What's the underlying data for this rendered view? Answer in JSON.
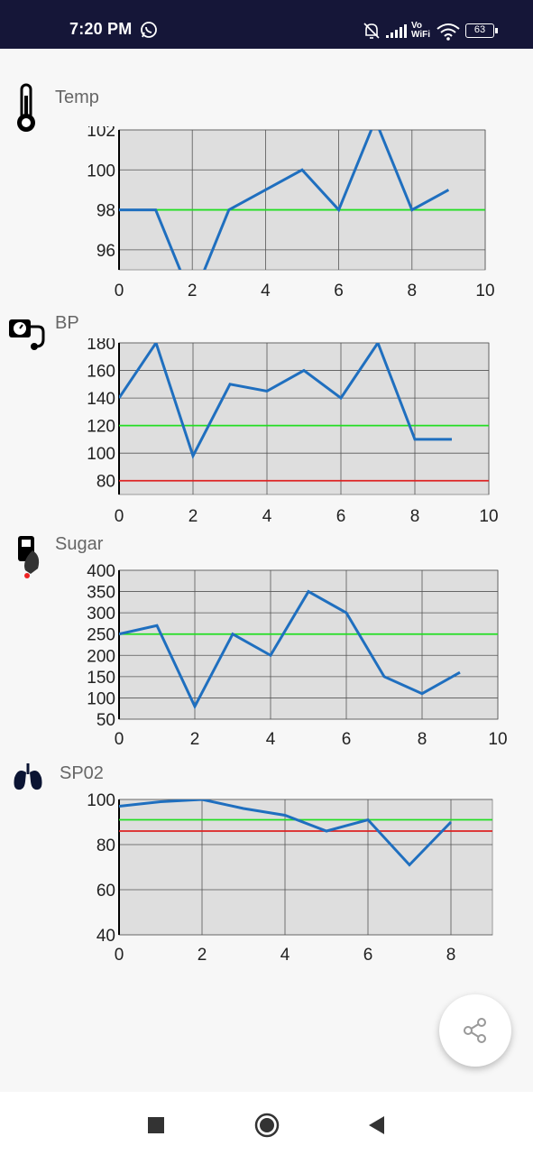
{
  "status_bar": {
    "time": "7:20 PM",
    "icons": [
      "whatsapp-icon",
      "mute-bell-icon",
      "signal-icon",
      "vowifi-icon",
      "wifi-icon",
      "battery-icon"
    ],
    "vowifi_text": "Vo\nWiFi",
    "battery": "63"
  },
  "sections": [
    {
      "label": "Temp",
      "icon": "thermometer-icon"
    },
    {
      "label": "BP",
      "icon": "blood-pressure-monitor-icon"
    },
    {
      "label": "Sugar",
      "icon": "glucose-meter-icon"
    },
    {
      "label": "SP02",
      "icon": "lungs-icon"
    }
  ],
  "chart_data": [
    {
      "type": "line",
      "xlim": [
        0,
        10
      ],
      "ylim": [
        95,
        102
      ],
      "x_ticks": [
        "0",
        "2",
        "4",
        "6",
        "8",
        "10"
      ],
      "y_ticks": [
        "96",
        "98",
        "100",
        "102"
      ],
      "series": [
        {
          "color": "#1f6fbf",
          "x": [
            0,
            1,
            2,
            3,
            4,
            5,
            6,
            7,
            8,
            9
          ],
          "y": [
            98,
            98,
            93.5,
            98,
            99,
            100,
            98,
            102.5,
            98,
            99
          ]
        }
      ],
      "reference_lines": [
        {
          "y": 98,
          "color": "#22dd22"
        }
      ],
      "grid": true
    },
    {
      "type": "line",
      "xlim": [
        0,
        10
      ],
      "ylim": [
        70,
        180
      ],
      "x_ticks": [
        "0",
        "2",
        "4",
        "6",
        "8",
        "10"
      ],
      "y_ticks": [
        "80",
        "100",
        "120",
        "140",
        "160",
        "180"
      ],
      "series": [
        {
          "color": "#1f6fbf",
          "x": [
            0,
            1,
            2,
            3,
            4,
            5,
            6,
            7,
            8,
            9
          ],
          "y": [
            140,
            180,
            98,
            150,
            145,
            160,
            140,
            180,
            110,
            110
          ]
        }
      ],
      "reference_lines": [
        {
          "y": 120,
          "color": "#22dd22"
        },
        {
          "y": 80,
          "color": "#dd2222"
        }
      ],
      "grid": true
    },
    {
      "type": "line",
      "xlim": [
        0,
        10
      ],
      "ylim": [
        50,
        400
      ],
      "x_ticks": [
        "0",
        "2",
        "4",
        "6",
        "8",
        "10"
      ],
      "y_ticks": [
        "50",
        "100",
        "150",
        "200",
        "250",
        "300",
        "350",
        "400"
      ],
      "series": [
        {
          "color": "#1f6fbf",
          "x": [
            0,
            1,
            2,
            3,
            4,
            5,
            6,
            7,
            8,
            9
          ],
          "y": [
            250,
            270,
            80,
            250,
            200,
            350,
            300,
            150,
            110,
            160
          ]
        }
      ],
      "reference_lines": [
        {
          "y": 250,
          "color": "#22dd22"
        }
      ],
      "grid": true
    },
    {
      "type": "line",
      "xlim": [
        0,
        9
      ],
      "ylim": [
        40,
        100
      ],
      "x_ticks": [
        "0",
        "2",
        "4",
        "6",
        "8"
      ],
      "y_ticks": [
        "40",
        "60",
        "80",
        "100"
      ],
      "series": [
        {
          "color": "#1f6fbf",
          "x": [
            0,
            1,
            2,
            3,
            4,
            5,
            6,
            7,
            8
          ],
          "y": [
            97,
            99,
            100,
            96,
            93,
            86,
            91,
            71,
            90
          ]
        }
      ],
      "reference_lines": [
        {
          "y": 91,
          "color": "#22dd22"
        },
        {
          "y": 86,
          "color": "#dd2222"
        }
      ],
      "grid": true
    }
  ],
  "fab": {
    "icon": "share-icon"
  },
  "nav_bar": {
    "icons": [
      "recents-square-icon",
      "home-circle-icon",
      "back-triangle-icon"
    ]
  }
}
